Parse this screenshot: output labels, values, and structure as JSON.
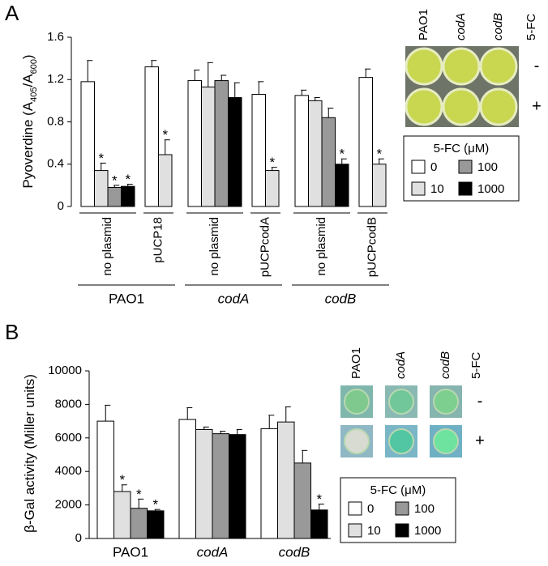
{
  "chart_data": [
    {
      "type": "bar",
      "panel_label": "A",
      "ylabel": [
        "Pyoverdine (A",
        "405",
        "/A",
        "600",
        ")"
      ],
      "ylim": [
        0,
        1.6
      ],
      "yticks": [
        0,
        0.4,
        0.8,
        1.2,
        1.6
      ],
      "groups": [
        {
          "name": "PAO1",
          "italic": false,
          "categories": [
            "no plasmid",
            "pUCP18"
          ]
        },
        {
          "name": "codA",
          "italic": true,
          "categories": [
            "no plasmid",
            "pUCPcodA"
          ]
        },
        {
          "name": "codB",
          "italic": true,
          "categories": [
            "no plasmid",
            "pUCPcodB"
          ]
        }
      ],
      "legend_title": "5-FC (μM)",
      "significance_marker": "*",
      "series": [
        {
          "name": "0",
          "color": "#ffffff",
          "values": [
            1.18,
            1.32,
            1.19,
            1.06,
            1.05,
            1.22
          ],
          "errors": [
            0.2,
            0.06,
            0.1,
            0.12,
            0.05,
            0.08
          ],
          "significant": [
            false,
            false,
            false,
            false,
            false,
            false
          ]
        },
        {
          "name": "10",
          "color": "#e0e0e0",
          "values": [
            0.34,
            0.49,
            1.13,
            0.34,
            1.0,
            0.4
          ],
          "errors": [
            0.07,
            0.14,
            0.23,
            0.03,
            0.03,
            0.05
          ],
          "significant": [
            true,
            true,
            false,
            true,
            false,
            true
          ]
        },
        {
          "name": "100",
          "color": "#999999",
          "values": [
            0.18,
            null,
            1.19,
            null,
            0.84,
            null
          ],
          "errors": [
            0.02,
            null,
            0.05,
            null,
            0.09,
            null
          ],
          "significant": [
            true,
            false,
            false,
            false,
            false,
            false
          ]
        },
        {
          "name": "1000",
          "color": "#000000",
          "values": [
            0.19,
            null,
            1.03,
            null,
            0.4,
            null
          ],
          "errors": [
            0.02,
            null,
            0.14,
            null,
            0.05,
            null
          ],
          "significant": [
            true,
            false,
            false,
            false,
            true,
            false
          ]
        }
      ],
      "inset": {
        "columns": [
          {
            "label": "PAO1",
            "italic": false
          },
          {
            "label": "codA",
            "italic": true
          },
          {
            "label": "codB",
            "italic": true
          }
        ],
        "condition_label": "5-FC",
        "rows": [
          "-",
          "+"
        ]
      }
    },
    {
      "type": "bar",
      "panel_label": "B",
      "ylabel": [
        "β-Gal activity (Miller units)"
      ],
      "ylim": [
        0,
        10000
      ],
      "yticks": [
        0,
        2000,
        4000,
        6000,
        8000,
        10000
      ],
      "categories": [
        "PAO1",
        "codA",
        "codB"
      ],
      "italic_categories": [
        false,
        true,
        true
      ],
      "legend_title": "5-FC (μM)",
      "significance_marker": "*",
      "series": [
        {
          "name": "0",
          "color": "#ffffff",
          "values": [
            7000,
            7100,
            6550
          ],
          "errors": [
            950,
            700,
            800
          ],
          "significant": [
            false,
            false,
            false
          ]
        },
        {
          "name": "10",
          "color": "#e0e0e0",
          "values": [
            2800,
            6500,
            6950
          ],
          "errors": [
            400,
            150,
            900
          ],
          "significant": [
            true,
            false,
            false
          ]
        },
        {
          "name": "100",
          "color": "#999999",
          "values": [
            1800,
            6250,
            4500
          ],
          "errors": [
            550,
            150,
            750
          ],
          "significant": [
            true,
            false,
            false
          ]
        },
        {
          "name": "1000",
          "color": "#000000",
          "values": [
            1650,
            6200,
            1700
          ],
          "errors": [
            80,
            300,
            350
          ],
          "significant": [
            true,
            false,
            true
          ]
        }
      ],
      "inset": {
        "columns": [
          {
            "label": "PAO1",
            "italic": false
          },
          {
            "label": "codA",
            "italic": true
          },
          {
            "label": "codB",
            "italic": true
          }
        ],
        "condition_label": "5-FC",
        "rows": [
          "-",
          "+"
        ]
      }
    }
  ]
}
